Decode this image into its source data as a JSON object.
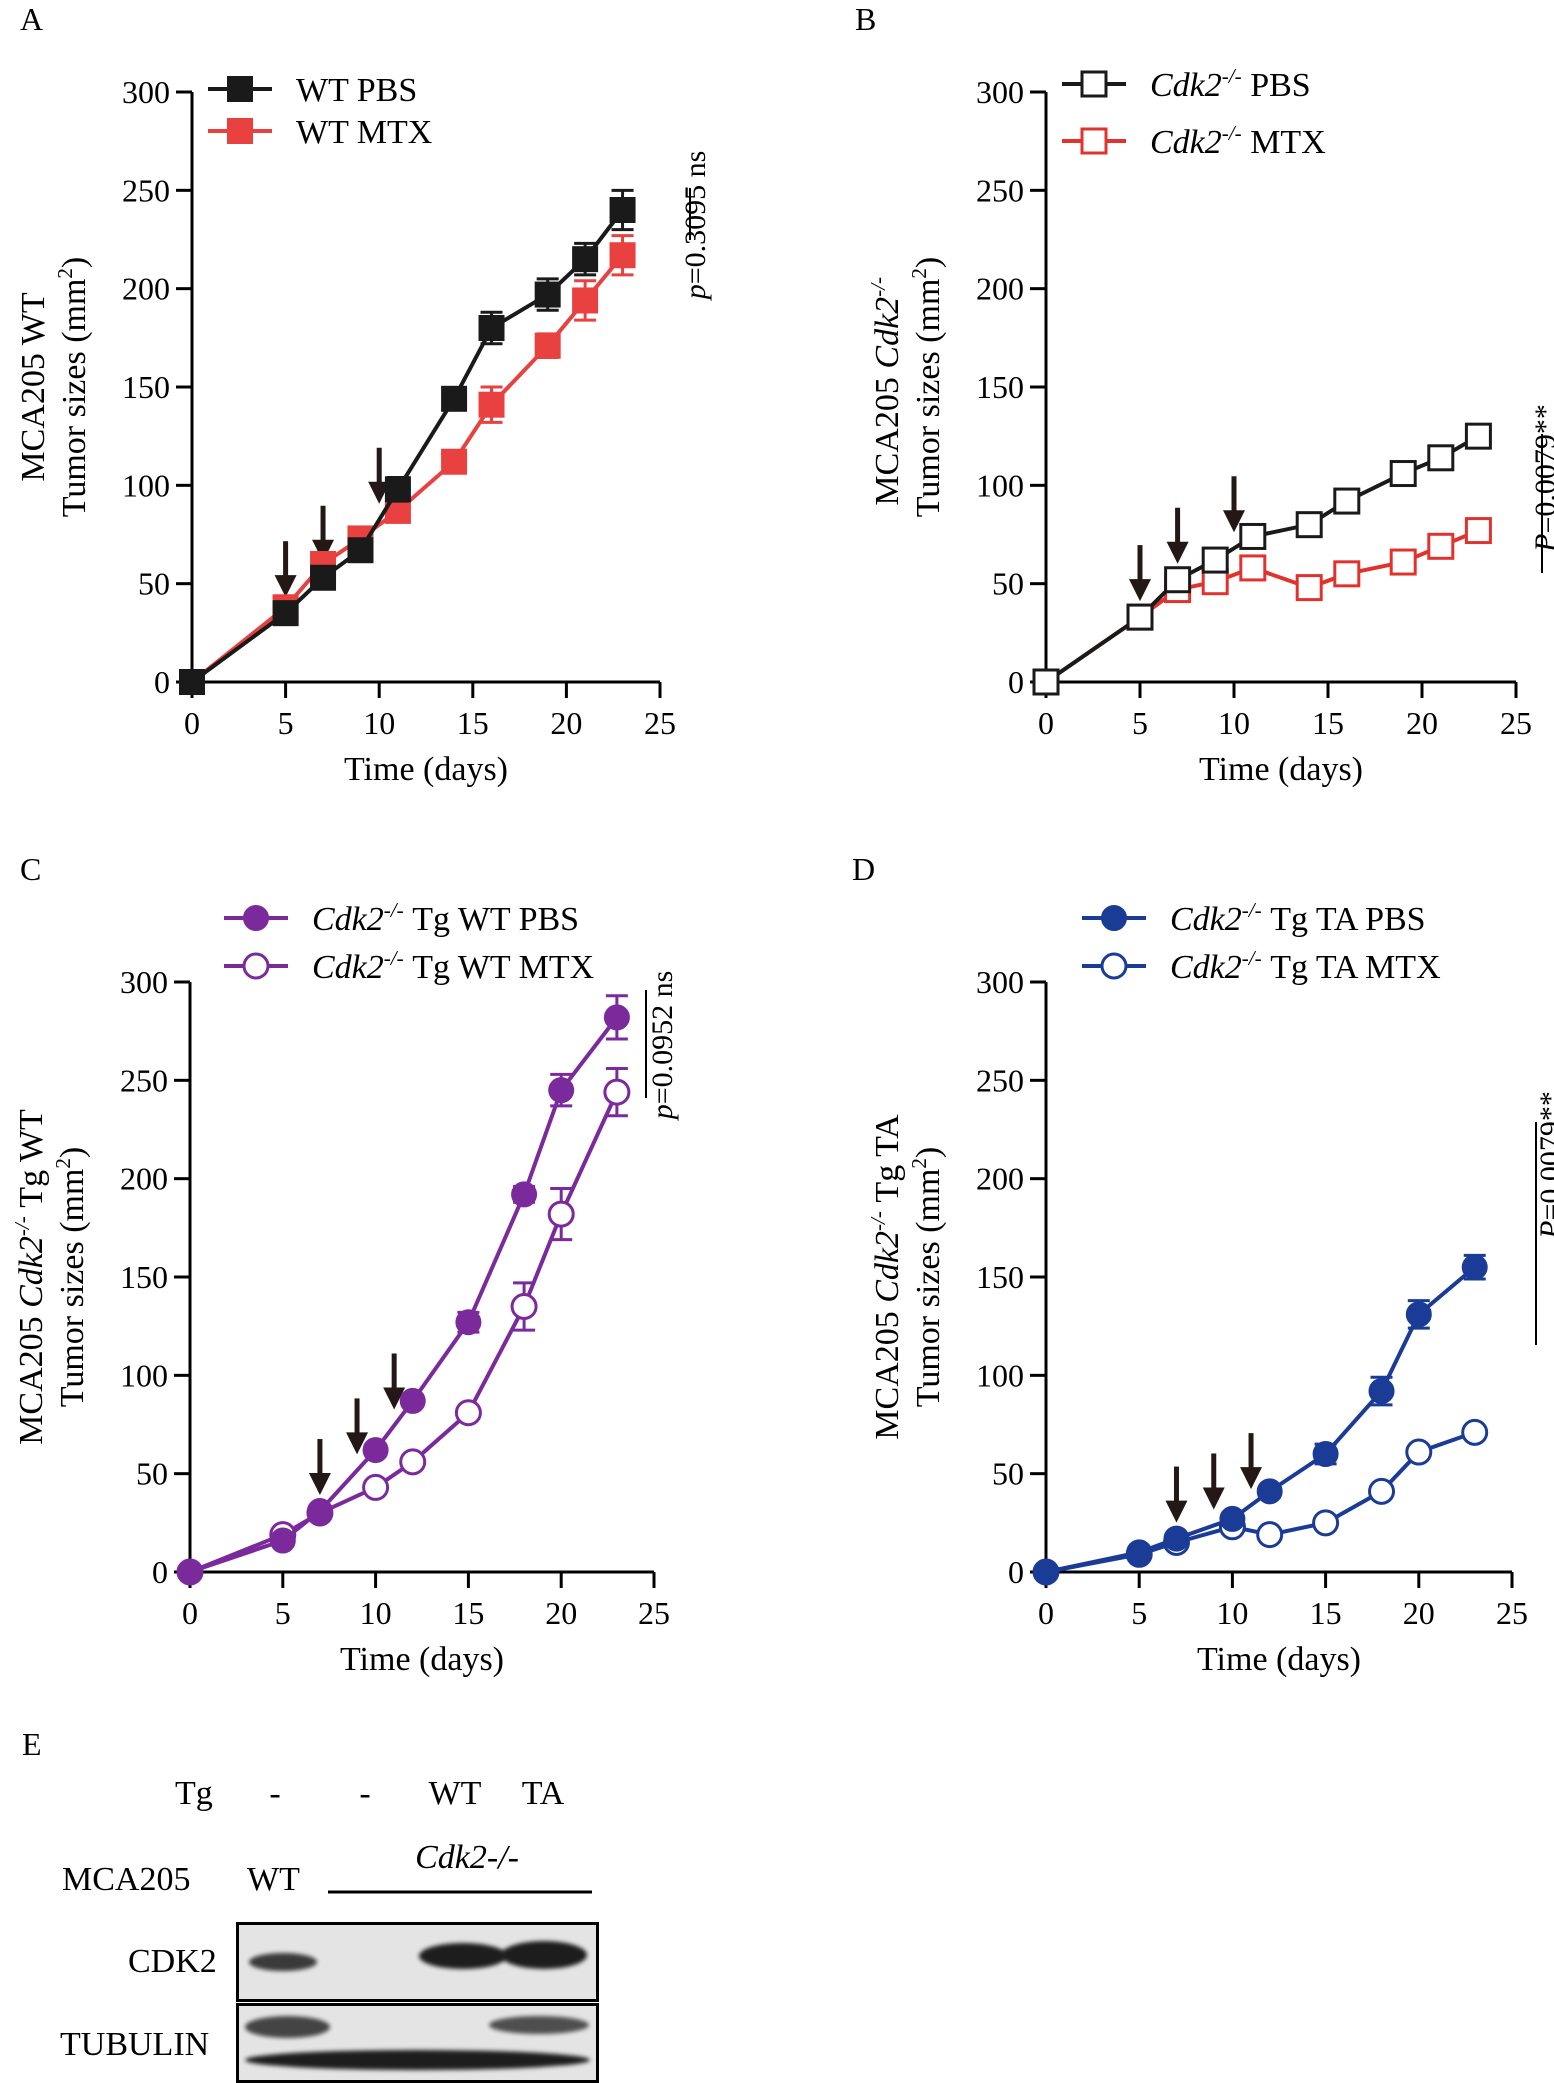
{
  "chart_data": [
    {
      "panel": "A",
      "type": "line",
      "xlabel": "Time (days)",
      "ylabel_lines": [
        "MCA205 WT",
        "Tumor sizes (mm²)"
      ],
      "xlim": [
        0,
        25
      ],
      "ylim": [
        0,
        300
      ],
      "xticks": [
        0,
        5,
        10,
        15,
        20,
        25
      ],
      "yticks": [
        0,
        50,
        100,
        150,
        200,
        250,
        300
      ],
      "treatment_arrows_days": [
        5,
        7,
        10
      ],
      "significance": "p=0.3095 ns",
      "series": [
        {
          "name": "WT PBS",
          "color": "#1a1a1a",
          "marker": "square",
          "filled": true,
          "x": [
            0,
            5,
            7,
            9,
            11,
            14,
            16,
            19,
            21,
            23
          ],
          "y": [
            0,
            35,
            53,
            67,
            98,
            144,
            180,
            197,
            215,
            240
          ],
          "err": [
            0,
            4,
            5,
            5,
            6,
            5,
            8,
            8,
            8,
            10
          ]
        },
        {
          "name": "WT MTX",
          "color": "#e8413f",
          "marker": "square",
          "filled": true,
          "x": [
            0,
            5,
            7,
            9,
            11,
            14,
            16,
            19,
            21,
            23
          ],
          "y": [
            0,
            38,
            60,
            73,
            87,
            112,
            141,
            171,
            194,
            217
          ],
          "err": [
            0,
            3,
            4,
            4,
            4,
            4,
            9,
            6,
            10,
            10
          ]
        }
      ]
    },
    {
      "panel": "B",
      "type": "line",
      "xlabel": "Time (days)",
      "ylabel_lines": [
        "MCA205 Cdk2-/-",
        "Tumor sizes (mm²)"
      ],
      "xlim": [
        0,
        25
      ],
      "ylim": [
        0,
        300
      ],
      "xticks": [
        0,
        5,
        10,
        15,
        20,
        25
      ],
      "yticks": [
        0,
        50,
        100,
        150,
        200,
        250,
        300
      ],
      "treatment_arrows_days": [
        5,
        7,
        10
      ],
      "significance": "P=0.0079**",
      "series": [
        {
          "name": "Cdk2-/- PBS",
          "color": "#1a1a1a",
          "marker": "square",
          "filled": false,
          "x": [
            0,
            5,
            7,
            9,
            11,
            14,
            16,
            19,
            21,
            23
          ],
          "y": [
            0,
            33,
            52,
            62,
            74,
            80,
            92,
            106,
            114,
            125
          ],
          "err": [
            0,
            2,
            2,
            2,
            2,
            2,
            2,
            2,
            2,
            2
          ]
        },
        {
          "name": "Cdk2-/- MTX",
          "color": "#e0332e",
          "marker": "square",
          "filled": false,
          "x": [
            0,
            5,
            7,
            9,
            11,
            14,
            16,
            19,
            21,
            23
          ],
          "y": [
            0,
            33,
            47,
            51,
            58,
            48,
            55,
            61,
            69,
            77
          ],
          "err": [
            0,
            2,
            2,
            2,
            2,
            2,
            2,
            2,
            2,
            2
          ]
        }
      ]
    },
    {
      "panel": "C",
      "type": "line",
      "xlabel": "Time (days)",
      "ylabel_lines": [
        "MCA205 Cdk2-/- Tg WT",
        "Tumor sizes (mm²)"
      ],
      "xlim": [
        0,
        25
      ],
      "ylim": [
        0,
        300
      ],
      "xticks": [
        0,
        5,
        10,
        15,
        20,
        25
      ],
      "yticks": [
        0,
        50,
        100,
        150,
        200,
        250,
        300
      ],
      "treatment_arrows_days": [
        7,
        9,
        11
      ],
      "significance": "p=0.0952 ns",
      "series": [
        {
          "name": "Cdk2-/- Tg WT PBS",
          "color": "#7b2a9c",
          "marker": "circle",
          "filled": true,
          "x": [
            0,
            5,
            7,
            10,
            12,
            15,
            18,
            20,
            23
          ],
          "y": [
            0,
            16,
            31,
            62,
            87,
            127,
            192,
            245,
            282
          ],
          "err": [
            0,
            2,
            2,
            3,
            3,
            5,
            4,
            8,
            11
          ]
        },
        {
          "name": "Cdk2-/- Tg WT MTX",
          "color": "#7b2a9c",
          "marker": "circle",
          "filled": false,
          "x": [
            0,
            5,
            7,
            10,
            12,
            15,
            18,
            20,
            23
          ],
          "y": [
            0,
            19,
            30,
            43,
            56,
            81,
            135,
            182,
            244
          ],
          "err": [
            0,
            2,
            2,
            2,
            2,
            3,
            12,
            13,
            12
          ]
        }
      ]
    },
    {
      "panel": "D",
      "type": "line",
      "xlabel": "Time (days)",
      "ylabel_lines": [
        "MCA205 Cdk2-/- Tg TA",
        "Tumor sizes (mm²)"
      ],
      "xlim": [
        0,
        25
      ],
      "ylim": [
        0,
        300
      ],
      "xticks": [
        0,
        5,
        10,
        15,
        20,
        25
      ],
      "yticks": [
        0,
        50,
        100,
        150,
        200,
        250,
        300
      ],
      "treatment_arrows_days": [
        7,
        9,
        11
      ],
      "significance": "P=0.0079**",
      "series": [
        {
          "name": "Cdk2-/- Tg TA PBS",
          "color": "#1a3c96",
          "marker": "circle",
          "filled": true,
          "x": [
            0,
            5,
            7,
            10,
            12,
            15,
            18,
            20,
            23
          ],
          "y": [
            0,
            10,
            17,
            27,
            41,
            60,
            92,
            131,
            155
          ],
          "err": [
            0,
            1,
            2,
            3,
            3,
            5,
            7,
            7,
            6
          ]
        },
        {
          "name": "Cdk2-/- Tg TA MTX",
          "color": "#1a3c96",
          "marker": "circle",
          "filled": false,
          "x": [
            0,
            5,
            7,
            10,
            12,
            15,
            18,
            20,
            23
          ],
          "y": [
            0,
            9,
            15,
            23,
            19,
            25,
            41,
            61,
            71
          ],
          "err": [
            0,
            1,
            1,
            2,
            2,
            2,
            2,
            3,
            3
          ]
        }
      ]
    }
  ],
  "panel_labels": {
    "a": "A",
    "b": "B",
    "c": "C",
    "d": "D",
    "e": "E"
  },
  "blot": {
    "tg_label": "Tg",
    "tg_values": [
      "-",
      "-",
      "WT",
      "TA"
    ],
    "cell_label": "MCA205",
    "wt_label": "WT",
    "cdk2_group_label": "Cdk2-/-",
    "rows": [
      "CDK2",
      "TUBULIN"
    ]
  }
}
